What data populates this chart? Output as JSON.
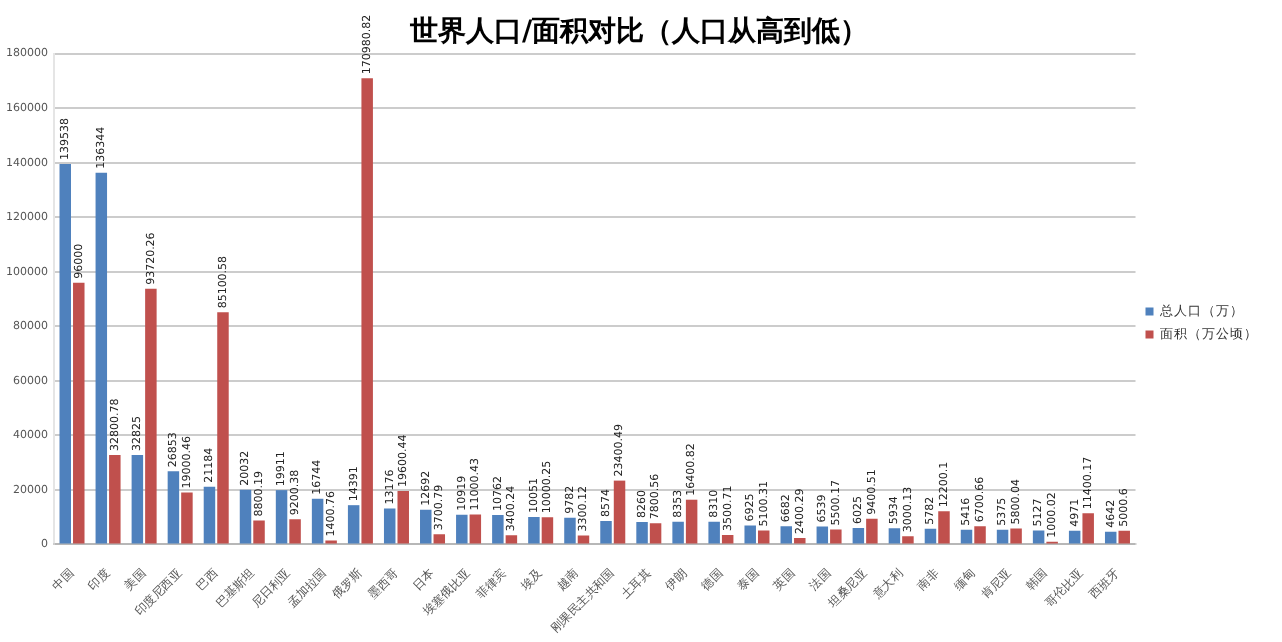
{
  "chart_data": {
    "type": "bar",
    "title": "世界人口/面积对比（人口从高到低）",
    "categories": [
      "中国",
      "印度",
      "美国",
      "印度尼西亚",
      "巴西",
      "巴基斯坦",
      "尼日利亚",
      "孟加拉国",
      "俄罗斯",
      "墨西哥",
      "日本",
      "埃塞俄比亚",
      "菲律宾",
      "埃及",
      "越南",
      "刚果民主共和国",
      "土耳其",
      "伊朗",
      "德国",
      "泰国",
      "英国",
      "法国",
      "坦桑尼亚",
      "意大利",
      "南非",
      "缅甸",
      "肯尼亚",
      "韩国",
      "哥伦比亚",
      "西班牙"
    ],
    "series": [
      {
        "name": "总人口（万）",
        "color": "#4f81bd",
        "values": [
          139538,
          136344,
          32825,
          26853,
          21184,
          20032,
          19911,
          16744,
          14391,
          13176,
          12692,
          10919,
          10762,
          10051,
          9782,
          8574,
          8260,
          8353,
          8310,
          6925,
          6682,
          6539,
          6025,
          5934,
          5782,
          5416,
          5375,
          5127,
          4971,
          4642
        ]
      },
      {
        "name": "面积（万公顷）",
        "color": "#c0504d",
        "values": [
          96000,
          32800.78,
          93720.26,
          19000.46,
          85100.58,
          8800.19,
          9200.38,
          1400.76,
          170980.82,
          19600.44,
          3700.79,
          11000.43,
          3400.24,
          10000.25,
          3300.12,
          23400.49,
          7800.56,
          16400.82,
          3500.71,
          5100.31,
          2400.29,
          5500.17,
          9400.51,
          3000.13,
          12200.1,
          6700.66,
          5800.04,
          1000.02,
          11400.17,
          5000.6
        ]
      }
    ],
    "ylim": [
      0,
      180000
    ],
    "yticks": [
      0,
      20000,
      40000,
      60000,
      80000,
      100000,
      120000,
      140000,
      160000,
      180000
    ],
    "grid": "y",
    "legend": "right",
    "data_labels": true
  }
}
